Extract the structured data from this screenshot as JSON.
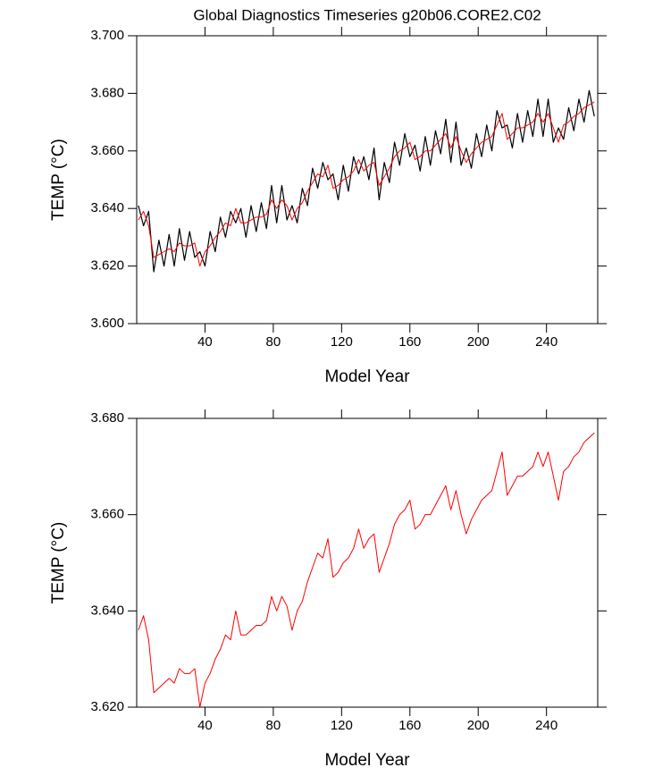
{
  "chart_data": [
    {
      "type": "line",
      "title": "Global Diagnostics Timeseries g20b06.CORE2.C02",
      "xlabel": "Model Year",
      "ylabel": "TEMP (°C)",
      "x": [
        1,
        4,
        7,
        10,
        13,
        16,
        19,
        22,
        25,
        28,
        31,
        34,
        37,
        40,
        43,
        46,
        49,
        52,
        55,
        58,
        61,
        64,
        67,
        70,
        73,
        76,
        79,
        82,
        85,
        88,
        91,
        94,
        97,
        100,
        103,
        106,
        109,
        112,
        115,
        118,
        121,
        124,
        127,
        130,
        133,
        136,
        139,
        142,
        145,
        148,
        151,
        154,
        157,
        160,
        163,
        166,
        169,
        172,
        175,
        178,
        181,
        184,
        187,
        190,
        193,
        196,
        199,
        202,
        205,
        208,
        211,
        214,
        217,
        220,
        223,
        226,
        229,
        232,
        235,
        238,
        241,
        244,
        247,
        250,
        253,
        256,
        259,
        262,
        265,
        268
      ],
      "series": [
        {
          "color": "#000000",
          "values": [
            3.641,
            3.634,
            3.639,
            3.618,
            3.629,
            3.62,
            3.631,
            3.62,
            3.633,
            3.622,
            3.632,
            3.623,
            3.625,
            3.62,
            3.632,
            3.625,
            3.637,
            3.63,
            3.639,
            3.635,
            3.64,
            3.63,
            3.641,
            3.632,
            3.642,
            3.633,
            3.648,
            3.635,
            3.648,
            3.636,
            3.641,
            3.635,
            3.647,
            3.641,
            3.654,
            3.647,
            3.656,
            3.65,
            3.652,
            3.643,
            3.655,
            3.646,
            3.658,
            3.652,
            3.658,
            3.65,
            3.661,
            3.643,
            3.656,
            3.649,
            3.663,
            3.655,
            3.666,
            3.658,
            3.662,
            3.653,
            3.665,
            3.655,
            3.667,
            3.659,
            3.671,
            3.656,
            3.67,
            3.655,
            3.661,
            3.654,
            3.666,
            3.658,
            3.669,
            3.66,
            3.674,
            3.668,
            3.669,
            3.661,
            3.673,
            3.663,
            3.674,
            3.665,
            3.678,
            3.665,
            3.678,
            3.663,
            3.668,
            3.664,
            3.675,
            3.667,
            3.678,
            3.67,
            3.681,
            3.672
          ]
        },
        {
          "color": "#ff0000",
          "values": [
            3.636,
            3.639,
            3.634,
            3.623,
            3.624,
            3.625,
            3.626,
            3.625,
            3.628,
            3.627,
            3.627,
            3.628,
            3.62,
            3.625,
            3.627,
            3.63,
            3.632,
            3.635,
            3.634,
            3.64,
            3.635,
            3.635,
            3.636,
            3.637,
            3.637,
            3.638,
            3.643,
            3.64,
            3.643,
            3.641,
            3.636,
            3.64,
            3.642,
            3.646,
            3.649,
            3.652,
            3.651,
            3.655,
            3.647,
            3.648,
            3.65,
            3.651,
            3.653,
            3.657,
            3.653,
            3.655,
            3.656,
            3.648,
            3.651,
            3.654,
            3.658,
            3.66,
            3.661,
            3.663,
            3.657,
            3.658,
            3.66,
            3.66,
            3.662,
            3.664,
            3.666,
            3.661,
            3.665,
            3.66,
            3.656,
            3.659,
            3.661,
            3.663,
            3.664,
            3.665,
            3.669,
            3.673,
            3.664,
            3.666,
            3.668,
            3.668,
            3.669,
            3.67,
            3.673,
            3.67,
            3.673,
            3.668,
            3.663,
            3.669,
            3.67,
            3.672,
            3.673,
            3.675,
            3.676,
            3.677
          ]
        }
      ],
      "xlim": [
        0,
        270
      ],
      "xticks": [
        40,
        80,
        120,
        160,
        200,
        240
      ],
      "ylim": [
        3.6,
        3.7
      ],
      "yticks": [
        {
          "value": 3.6,
          "label": "3.600"
        },
        {
          "value": 3.62,
          "label": "3.620"
        },
        {
          "value": 3.64,
          "label": "3.640"
        },
        {
          "value": 3.66,
          "label": "3.660"
        },
        {
          "value": 3.68,
          "label": "3.680"
        },
        {
          "value": 3.7,
          "label": "3.700"
        }
      ]
    },
    {
      "type": "line",
      "xlabel": "Model Year",
      "ylabel": "TEMP (°C)",
      "x": [
        1,
        4,
        7,
        10,
        13,
        16,
        19,
        22,
        25,
        28,
        31,
        34,
        37,
        40,
        43,
        46,
        49,
        52,
        55,
        58,
        61,
        64,
        67,
        70,
        73,
        76,
        79,
        82,
        85,
        88,
        91,
        94,
        97,
        100,
        103,
        106,
        109,
        112,
        115,
        118,
        121,
        124,
        127,
        130,
        133,
        136,
        139,
        142,
        145,
        148,
        151,
        154,
        157,
        160,
        163,
        166,
        169,
        172,
        175,
        178,
        181,
        184,
        187,
        190,
        193,
        196,
        199,
        202,
        205,
        208,
        211,
        214,
        217,
        220,
        223,
        226,
        229,
        232,
        235,
        238,
        241,
        244,
        247,
        250,
        253,
        256,
        259,
        262,
        265,
        268
      ],
      "series": [
        {
          "color": "#ff0000",
          "values": [
            3.636,
            3.639,
            3.634,
            3.623,
            3.624,
            3.625,
            3.626,
            3.625,
            3.628,
            3.627,
            3.627,
            3.628,
            3.62,
            3.625,
            3.627,
            3.63,
            3.632,
            3.635,
            3.634,
            3.64,
            3.635,
            3.635,
            3.636,
            3.637,
            3.637,
            3.638,
            3.643,
            3.64,
            3.643,
            3.641,
            3.636,
            3.64,
            3.642,
            3.646,
            3.649,
            3.652,
            3.651,
            3.655,
            3.647,
            3.648,
            3.65,
            3.651,
            3.653,
            3.657,
            3.653,
            3.655,
            3.656,
            3.648,
            3.651,
            3.654,
            3.658,
            3.66,
            3.661,
            3.663,
            3.657,
            3.658,
            3.66,
            3.66,
            3.662,
            3.664,
            3.666,
            3.661,
            3.665,
            3.66,
            3.656,
            3.659,
            3.661,
            3.663,
            3.664,
            3.665,
            3.669,
            3.673,
            3.664,
            3.666,
            3.668,
            3.668,
            3.669,
            3.67,
            3.673,
            3.67,
            3.673,
            3.668,
            3.663,
            3.669,
            3.67,
            3.672,
            3.673,
            3.675,
            3.676,
            3.677
          ]
        }
      ],
      "xlim": [
        0,
        270
      ],
      "xticks": [
        40,
        80,
        120,
        160,
        200,
        240
      ],
      "ylim": [
        3.62,
        3.68
      ],
      "yticks": [
        {
          "value": 3.62,
          "label": "3.620"
        },
        {
          "value": 3.64,
          "label": "3.640"
        },
        {
          "value": 3.66,
          "label": "3.660"
        },
        {
          "value": 3.68,
          "label": "3.680"
        }
      ]
    }
  ]
}
